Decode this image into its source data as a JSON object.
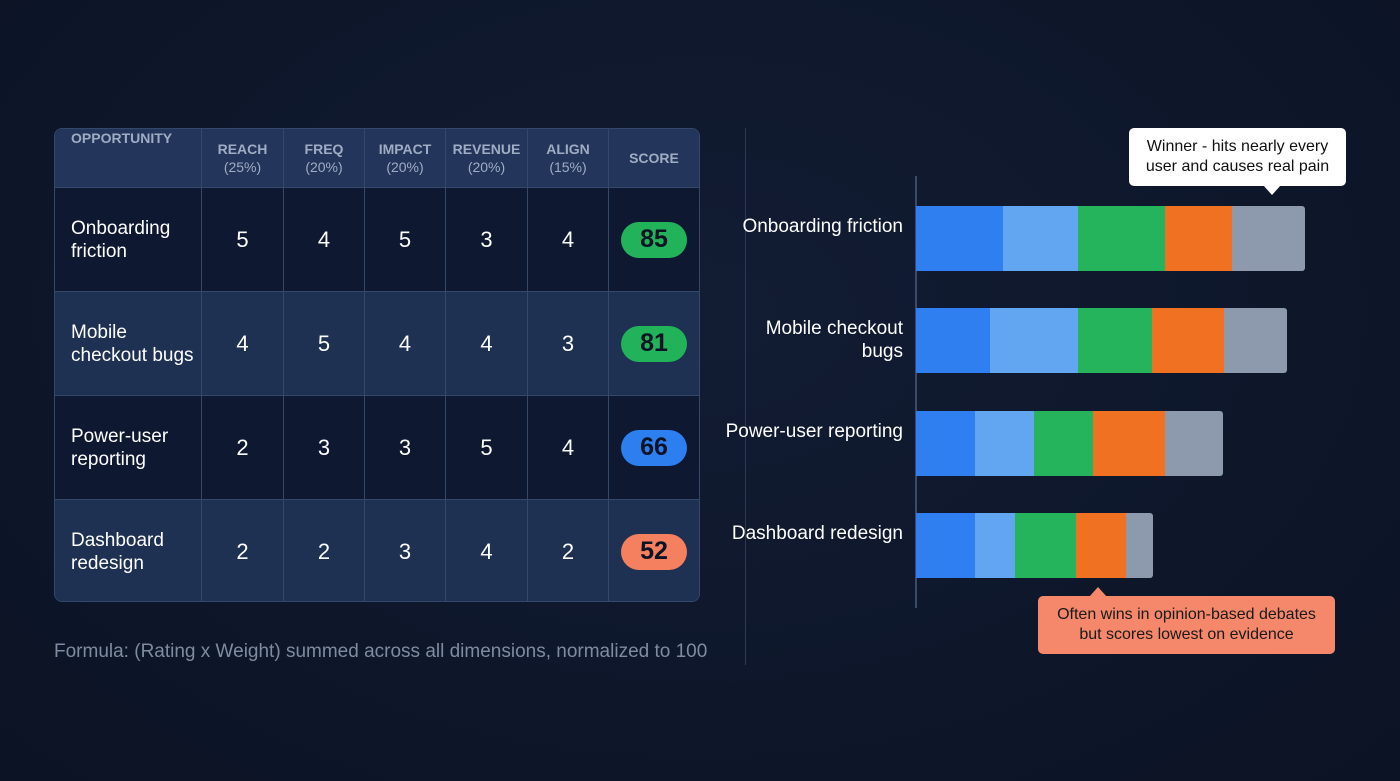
{
  "table": {
    "headers": [
      {
        "label": "OPPORTUNITY",
        "weight": ""
      },
      {
        "label": "REACH",
        "weight": "(25%)"
      },
      {
        "label": "FREQ",
        "weight": "(20%)"
      },
      {
        "label": "IMPACT",
        "weight": "(20%)"
      },
      {
        "label": "REVENUE",
        "weight": "(20%)"
      },
      {
        "label": "ALIGN",
        "weight": "(15%)"
      },
      {
        "label": "SCORE",
        "weight": ""
      }
    ],
    "rows": [
      {
        "name": "Onboarding friction",
        "ratings": [
          "5",
          "4",
          "5",
          "3",
          "4"
        ],
        "score": "85",
        "score_color": "#22b35a"
      },
      {
        "name": "Mobile checkout bugs",
        "ratings": [
          "4",
          "5",
          "4",
          "4",
          "3"
        ],
        "score": "81",
        "score_color": "#22b35a"
      },
      {
        "name": "Power-user reporting",
        "ratings": [
          "2",
          "3",
          "3",
          "5",
          "4"
        ],
        "score": "66",
        "score_color": "#2d7ff0"
      },
      {
        "name": "Dashboard redesign",
        "ratings": [
          "2",
          "2",
          "3",
          "4",
          "2"
        ],
        "score": "52",
        "score_color": "#f4805f"
      }
    ]
  },
  "formula": "Formula: (Rating x Weight) summed across all dimensions, normalized to 100",
  "chart_data": {
    "type": "bar",
    "orientation": "horizontal-stacked",
    "categories": [
      "Onboarding friction",
      "Mobile checkout bugs",
      "Power-user reporting",
      "Dashboard redesign"
    ],
    "series": [
      {
        "name": "Reach",
        "color": "#2f7ff0",
        "values": [
          19,
          16.2,
          12.9,
          12.9
        ]
      },
      {
        "name": "Freq",
        "color": "#62a6f2",
        "values": [
          16.4,
          19.2,
          12.9,
          8.7
        ]
      },
      {
        "name": "Impact",
        "color": "#25b45b",
        "values": [
          19,
          16.2,
          12.9,
          13.3
        ]
      },
      {
        "name": "Revenue",
        "color": "#f07122",
        "values": [
          14.6,
          15.7,
          15.7,
          10.9
        ]
      },
      {
        "name": "Align",
        "color": "#8d9aad",
        "values": [
          16,
          13.7,
          12.6,
          5.9
        ]
      }
    ],
    "xlim": [
      0,
      100
    ],
    "annotations": [
      {
        "text": "Winner - hits nearly every user and causes real pain",
        "target": "Onboarding friction"
      },
      {
        "text": "Often wins in opinion-based debates but scores lowest on evidence",
        "target": "Dashboard redesign"
      }
    ]
  }
}
